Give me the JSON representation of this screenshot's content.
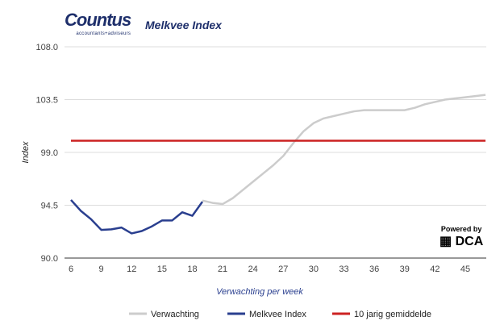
{
  "header": {
    "logo_name": "Countus",
    "logo_tagline": "accountants+adviseurs",
    "title": "Melkvee Index"
  },
  "powered": {
    "label": "Powered by",
    "brand": "DCA"
  },
  "chart_data": {
    "type": "line",
    "title": "Melkvee Index",
    "xlabel": "Verwachting per week",
    "ylabel": "Index",
    "ylim": [
      90,
      108
    ],
    "xlim": [
      6,
      47
    ],
    "yticks": [
      "90.0",
      "94.5",
      "99.0",
      "103.5",
      "108.0"
    ],
    "xticks": [
      "6",
      "9",
      "12",
      "15",
      "18",
      "21",
      "24",
      "27",
      "30",
      "33",
      "36",
      "39",
      "42",
      "45"
    ],
    "grid": true,
    "legend": "bottom",
    "series": [
      {
        "name": "Verwachting",
        "color": "#cccccc",
        "x": [
          19,
          20,
          21,
          22,
          23,
          24,
          25,
          26,
          27,
          28,
          29,
          30,
          31,
          32,
          33,
          34,
          35,
          36,
          37,
          38,
          39,
          40,
          41,
          42,
          43,
          44,
          45,
          46,
          47
        ],
        "y": [
          94.9,
          94.7,
          94.6,
          95.1,
          95.8,
          96.5,
          97.2,
          97.9,
          98.7,
          99.8,
          100.8,
          101.5,
          101.9,
          102.1,
          102.3,
          102.5,
          102.6,
          102.6,
          102.6,
          102.6,
          102.6,
          102.8,
          103.1,
          103.3,
          103.5,
          103.6,
          103.7,
          103.8,
          103.9
        ]
      },
      {
        "name": "Melkvee Index",
        "color": "#2a3f8f",
        "x": [
          6,
          7,
          8,
          9,
          10,
          11,
          12,
          13,
          14,
          15,
          16,
          17,
          18,
          19
        ],
        "y": [
          94.95,
          94.0,
          93.3,
          92.4,
          92.45,
          92.6,
          92.1,
          92.3,
          92.7,
          93.2,
          93.2,
          93.9,
          93.6,
          94.8
        ]
      },
      {
        "name": "10 jarig gemiddelde",
        "color": "#cc2222",
        "x": [
          6,
          47
        ],
        "y": [
          100.0,
          100.0
        ]
      }
    ]
  }
}
